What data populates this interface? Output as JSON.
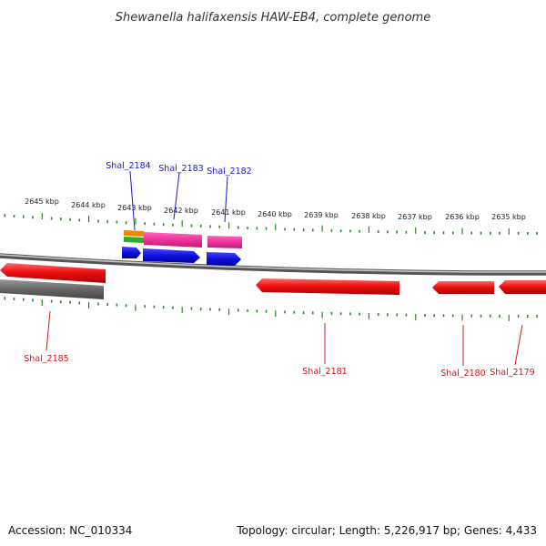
{
  "title": "Shewanella halifaxensis HAW-EB4, complete genome",
  "tick_labels": [
    "2645 kbp",
    "2644 kbp",
    "2643 kbp",
    "2642 kbp",
    "2641 kbp",
    "2640 kbp",
    "2639 kbp",
    "2638 kbp",
    "2637 kbp",
    "2636 kbp",
    "2635 kbp"
  ],
  "gene_labels": {
    "shal_2184": "Shal_2184",
    "shal_2183": "Shal_2183",
    "shal_2182": "Shal_2182",
    "shal_2185": "Shal_2185",
    "shal_2181": "Shal_2181",
    "shal_2180": "Shal_2180",
    "shal_2179": "Shal_2179"
  },
  "footer": {
    "accession": "Accession: NC_010334",
    "summary": "Topology: circular; Length: 5,226,917 bp; Genes: 4,433"
  },
  "colors": {
    "tick": "#2a8a2a",
    "forward_label": "#1a1acc",
    "reverse_label": "#cc1a1a",
    "red_gene": "#ee1111",
    "blue_gene": "#1111dd",
    "magenta_gene": "#ee3399",
    "gray_gene": "#666666",
    "orange_gene": "#ee8800",
    "green_gene": "#33aa22"
  }
}
